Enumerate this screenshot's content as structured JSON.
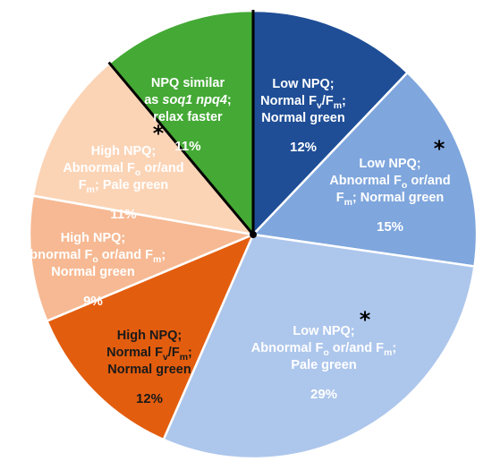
{
  "chart_data": {
    "type": "pie",
    "title": "",
    "slices": [
      {
        "lines": [
          "Low NPQ;",
          "Normal F{v}/F{m};",
          "Normal green"
        ],
        "label": "Low NPQ; Normal Fv/Fm; Normal green",
        "value_label": "12%",
        "value": 12,
        "color": "#1f4e96",
        "text_color": "#ffffff",
        "asterisk": false
      },
      {
        "lines": [
          "Low NPQ;",
          "Abnormal F{o} or/and",
          "F{m}; Normal green"
        ],
        "label": "Low NPQ; Abnormal Fo or/and Fm; Normal green",
        "value_label": "15%",
        "value": 15,
        "color": "#7fa6dd",
        "text_color": "#ffffff",
        "asterisk": true
      },
      {
        "lines": [
          "Low NPQ;",
          "Abnormal F{o} or/and F{m};",
          "Pale green"
        ],
        "label": "Low NPQ; Abnormal Fo or/and Fm; Pale green",
        "value_label": "29%",
        "value": 29,
        "color": "#adc6ec",
        "text_color": "#ffffff",
        "asterisk": true
      },
      {
        "lines": [
          "High NPQ;",
          "Normal F{v}/F{m};",
          "Normal green"
        ],
        "label": "High NPQ; Normal Fv/Fm; Normal green",
        "value_label": "12%",
        "value": 12,
        "color": "#e35d0e",
        "text_color": "#1a1a1a",
        "asterisk": false
      },
      {
        "lines": [
          "High NPQ;",
          "Abnormal F{o} or/and F{m};",
          "Normal green"
        ],
        "label": "High NPQ; Abnormal Fo or/and Fm; Normal green",
        "value_label": "9%",
        "value": 9,
        "color": "#f6b993",
        "text_color": "#ffffff",
        "asterisk": false
      },
      {
        "lines": [
          "High NPQ;",
          "Abnormal F{o} or/and",
          "F{m}; Pale green"
        ],
        "label": "High NPQ; Abnormal Fo or/and Fm; Pale green",
        "value_label": "11%",
        "value": 11,
        "color": "#fbd4b6",
        "text_color": "#ffffff",
        "asterisk": true
      },
      {
        "lines": [
          "NPQ similar",
          "as _soq1 npq4_;",
          "relax faster"
        ],
        "label": "NPQ similar as soq1 npq4; relax faster",
        "value_label": "11%",
        "value": 11,
        "color": "#44a935",
        "text_color": "#ffffff",
        "asterisk": false
      }
    ],
    "legend": "none",
    "separator_lines": [
      "between NPQ similar and Low NPQ groups",
      "between High NPQ and NPQ similar groups"
    ]
  }
}
